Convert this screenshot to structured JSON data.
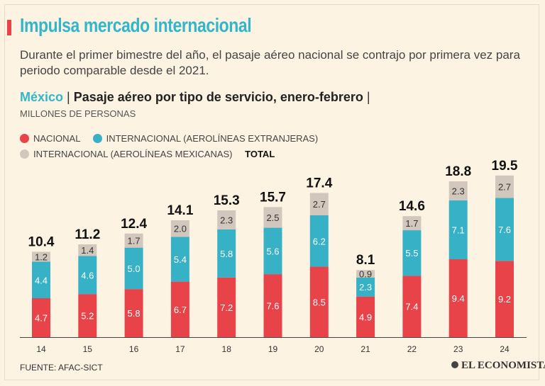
{
  "header": {
    "title": "Impulsa mercado internacional",
    "subtitle": "Durante el primer bimestre del año, el pasaje aéreo nacional se contrajo por primera vez para periodo comparable desde el 2021."
  },
  "chart_heading": {
    "country": "México",
    "separator": "|",
    "title": "Pasaje aéreo por tipo de servicio, enero-febrero",
    "trailing_separator": "|",
    "units": "MILLONES DE PERSONAS"
  },
  "legend": {
    "nacional": "NACIONAL",
    "intl_extranjeras": "INTERNACIONAL (AEROLÍNEAS EXTRANJERAS)",
    "intl_mexicanas": "INTERNACIONAL (AEROLÍNEAS MEXICANAS)",
    "total": "TOTAL"
  },
  "colors": {
    "nacional": "#e9434a",
    "intl_extranjeras": "#36b1c5",
    "intl_mexicanas": "#d2c7bd",
    "title_accent": "#33b6c9",
    "background": "#fdf3e3"
  },
  "chart_data": {
    "type": "bar",
    "stacked": true,
    "title": "Pasaje aéreo por tipo de servicio, enero-febrero",
    "ylabel": "MILLONES DE PERSONAS",
    "categories": [
      "14",
      "15",
      "16",
      "17",
      "18",
      "19",
      "20",
      "21",
      "22",
      "23",
      "24"
    ],
    "series": [
      {
        "name": "NACIONAL",
        "values": [
          4.7,
          5.2,
          5.8,
          6.7,
          7.2,
          7.6,
          8.5,
          4.9,
          7.4,
          9.4,
          9.2
        ]
      },
      {
        "name": "INTERNACIONAL (AEROLÍNEAS EXTRANJERAS)",
        "values": [
          4.4,
          4.6,
          5.0,
          5.4,
          5.8,
          5.6,
          6.2,
          2.3,
          5.5,
          7.1,
          7.6
        ]
      },
      {
        "name": "INTERNACIONAL (AEROLÍNEAS MEXICANAS)",
        "values": [
          1.2,
          1.4,
          1.7,
          2.0,
          2.3,
          2.5,
          2.7,
          0.9,
          1.7,
          2.3,
          2.7
        ]
      }
    ],
    "totals": [
      "10.4",
      "11.2",
      "12.4",
      "14.1",
      "15.3",
      "15.7",
      "17.4",
      "8.1",
      "14.6",
      "18.8",
      "19.5"
    ],
    "ylim": [
      0,
      20
    ]
  },
  "footer": {
    "source": "FUENTE: AFAC-SICT",
    "brand": "EL ECONOMISTA"
  }
}
